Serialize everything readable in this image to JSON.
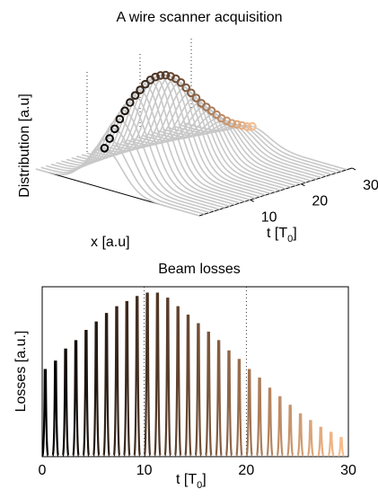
{
  "chart_data": [
    {
      "type": "line",
      "title": "A wire scanner acquisition",
      "xlabel": "x [a.u]",
      "ylabel": "Distribution [a.u]",
      "tlabel": "t [T",
      "tlabel_sub": "0",
      "tlabel_close": "]",
      "t_ticks": [
        10,
        20,
        30
      ],
      "t_range": [
        0,
        30
      ],
      "grid": true,
      "profile_color": "#c8c8c8",
      "num_profiles": 30,
      "peak_values": [
        0.3,
        0.36,
        0.42,
        0.48,
        0.53,
        0.58,
        0.62,
        0.65,
        0.68,
        0.7,
        0.71,
        0.71,
        0.7,
        0.68,
        0.65,
        0.61,
        0.56,
        0.51,
        0.46,
        0.41,
        0.37,
        0.33,
        0.29,
        0.25,
        0.22,
        0.19,
        0.17,
        0.15,
        0.13,
        0.12
      ],
      "color_start": "#000000",
      "color_mid": "#6b4a33",
      "color_end": "#f8bb8a"
    },
    {
      "type": "bar",
      "title": "Beam losses",
      "xlabel": "t [T",
      "xlabel_sub": "0",
      "xlabel_close": "]",
      "ylabel": "Losses [a.u.]",
      "x_ticks": [
        0,
        10,
        20,
        30
      ],
      "xlim": [
        0,
        30
      ],
      "ylim": [
        0,
        1
      ],
      "grid": true,
      "times": [
        0.3,
        1.3,
        2.3,
        3.3,
        4.3,
        5.3,
        6.3,
        7.3,
        8.3,
        9.3,
        10.3,
        11.3,
        12.3,
        13.3,
        14.3,
        15.3,
        16.3,
        17.3,
        18.3,
        19.3,
        20.3,
        21.3,
        22.3,
        23.3,
        24.3,
        25.3,
        26.3,
        27.3,
        28.3,
        29.3
      ],
      "values": [
        0.51,
        0.56,
        0.63,
        0.68,
        0.74,
        0.79,
        0.84,
        0.88,
        0.91,
        0.94,
        0.96,
        0.96,
        0.93,
        0.88,
        0.83,
        0.78,
        0.73,
        0.68,
        0.62,
        0.57,
        0.51,
        0.46,
        0.4,
        0.35,
        0.3,
        0.25,
        0.21,
        0.17,
        0.14,
        0.11
      ],
      "color_start": "#000000",
      "color_mid": "#6b4a33",
      "color_end": "#f8bb8a"
    }
  ]
}
